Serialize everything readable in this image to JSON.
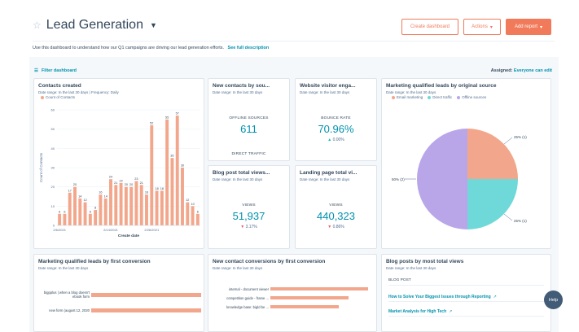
{
  "header": {
    "title": "Lead Generation",
    "description": "Use this dashboard to understand how our Q1 campaigns are driving our lead generation efforts.",
    "description_link": "See full description",
    "buttons": {
      "create": "Create dashboard",
      "actions": "Actions",
      "add_report": "Add report"
    }
  },
  "toolbar": {
    "filter": "Filter dashboard",
    "assigned_label": "Assigned:",
    "assigned_value": "Everyone can edit"
  },
  "colors": {
    "accent": "#f07a5a",
    "bar": "#f2a68b",
    "teal": "#6fd8d8",
    "purple": "#b9a6e8",
    "link": "#0091ae"
  },
  "cards": {
    "contacts": {
      "title": "Contacts created",
      "subtitle": "Date range: In the last 30 days  |  Frequency: Daily",
      "legend": "Count of Contacts"
    },
    "new_contacts": {
      "title": "New contacts by sou...",
      "subtitle": "Date range: In the last 30 days",
      "metric_label": "OFFLINE SOURCES",
      "value": "611",
      "metric_label2": "DIRECT TRAFFIC"
    },
    "visitor": {
      "title": "Website visitor enga...",
      "subtitle": "Date range: In the last 30 days",
      "metric_label": "BOUNCE RATE",
      "value": "70.96%",
      "change": "0.00%"
    },
    "blog_views": {
      "title": "Blog post total views...",
      "subtitle": "Date range: In the last 30 days",
      "metric_label": "VIEWS",
      "value": "51,937",
      "change": "3.17%"
    },
    "landing_views": {
      "title": "Landing page total vi...",
      "subtitle": "Date range: In the last 30 days",
      "metric_label": "VIEWS",
      "value": "440,323",
      "change": "0.86%"
    },
    "mql_source": {
      "title": "Marketing qualified leads by original source",
      "subtitle": "Date range: In the last 30 days",
      "legend": [
        "Email marketing",
        "Direct traffic",
        "Offline sources"
      ],
      "slice_labels": [
        "25% (1)",
        "25% (1)",
        "50% (2)"
      ]
    },
    "mql_conversion": {
      "title": "Marketing qualified leads by first conversion",
      "subtitle": "Date range: In the last 30 days",
      "rows": [
        {
          "label": "bigpplus | when a blog doesn't",
          "label2": "ebook form",
          "value": 1
        },
        {
          "label": "new form (august 12, 2020",
          "label2": "",
          "value": 1
        }
      ]
    },
    "contact_conversion": {
      "title": "New contact conversions by first conversion",
      "subtitle": "Date range: In the last 30 days",
      "rows": [
        {
          "label": "internal - document viewer",
          "value": 1
        },
        {
          "label": "competition guide - frame ...",
          "value": 0.8
        },
        {
          "label": "knowledge base: bigld be ...",
          "value": 0.7
        }
      ]
    },
    "blog_posts": {
      "title": "Blog posts by most total views",
      "subtitle": "Date range: In the last 30 days",
      "column": "BLOG POST",
      "rows": [
        "How to Solve Your Biggest Issues through Reporting",
        "Market Analysis for High Tech"
      ]
    }
  },
  "help_label": "Help",
  "chart_data": {
    "type": "bar",
    "title": "Contacts created",
    "xlabel": "Create date",
    "ylabel": "Count of Contacts",
    "ylim": [
      0,
      60
    ],
    "y_ticks": [
      0,
      10,
      20,
      30,
      40,
      50,
      60
    ],
    "x_tick_labels": [
      "2/6/2021",
      "2/14/2021",
      "2/26/2021"
    ],
    "series": [
      {
        "name": "Count of Contacts",
        "values": [
          6,
          6,
          17,
          20,
          14,
          12,
          6,
          8,
          16,
          14,
          24,
          21,
          22,
          20,
          20,
          23,
          21,
          16,
          52,
          18,
          18,
          55,
          35,
          57,
          30,
          12,
          10,
          6
        ]
      }
    ]
  }
}
